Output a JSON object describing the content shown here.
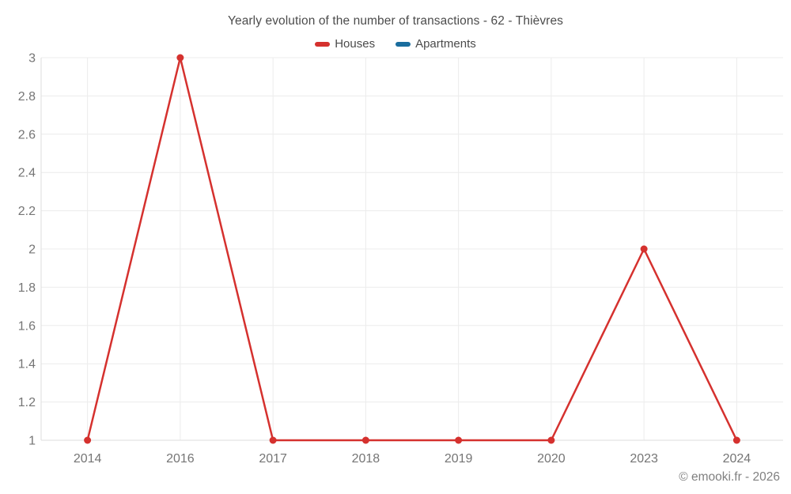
{
  "page": {
    "footer": "© emooki.fr - 2026"
  },
  "chart_data": {
    "type": "line",
    "title": "Yearly evolution of the number of transactions - 62 - Thièvres",
    "categories": [
      "2014",
      "2016",
      "2017",
      "2018",
      "2019",
      "2020",
      "2023",
      "2024"
    ],
    "series": [
      {
        "name": "Houses",
        "color": "#d5312e",
        "values": [
          1,
          3,
          1,
          1,
          1,
          1,
          2,
          1
        ]
      },
      {
        "name": "Apartments",
        "color": "#1a6d9e",
        "values": []
      }
    ],
    "xlabel": "",
    "ylabel": "",
    "ylim": [
      1,
      3
    ],
    "yticks": [
      "1",
      "1.2",
      "1.4",
      "1.6",
      "1.8",
      "2",
      "2.2",
      "2.4",
      "2.6",
      "2.8",
      "3"
    ],
    "grid": true,
    "legend_position": "top",
    "colors": {
      "grid": "#ececec",
      "axis": "#dedede",
      "tick_label": "#757575",
      "title_text": "#4c4c4c",
      "footer_text": "#808080"
    }
  }
}
